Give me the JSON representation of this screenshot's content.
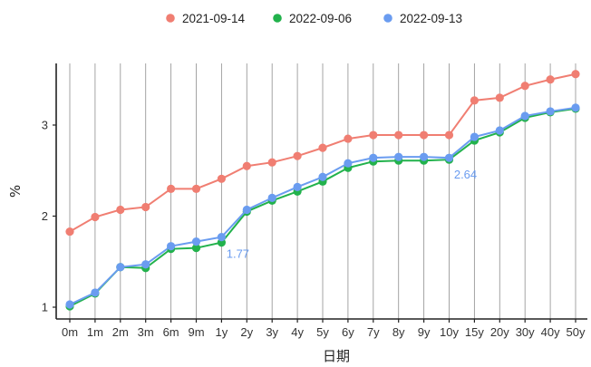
{
  "chart_data": {
    "type": "line",
    "xlabel": "日期",
    "ylabel": "%",
    "categories": [
      "0m",
      "1m",
      "2m",
      "3m",
      "6m",
      "9m",
      "1y",
      "2y",
      "3y",
      "4y",
      "5y",
      "6y",
      "7y",
      "8y",
      "9y",
      "10y",
      "15y",
      "20y",
      "30y",
      "40y",
      "50y"
    ],
    "yticks": [
      1,
      2,
      3
    ],
    "ylim": [
      0.9,
      3.65
    ],
    "grid": "vertical",
    "legend_position": "top",
    "series": [
      {
        "name": "2021-09-14",
        "color": "#F07E72",
        "values": [
          1.83,
          1.99,
          2.07,
          2.1,
          2.3,
          2.3,
          2.41,
          2.55,
          2.59,
          2.66,
          2.75,
          2.85,
          2.89,
          2.89,
          2.89,
          2.89,
          3.27,
          3.3,
          3.43,
          3.5,
          3.56
        ]
      },
      {
        "name": "2022-09-06",
        "color": "#22B24C",
        "values": [
          1.01,
          1.15,
          1.44,
          1.43,
          1.64,
          1.65,
          1.71,
          2.05,
          2.17,
          2.27,
          2.38,
          2.53,
          2.6,
          2.61,
          2.61,
          2.62,
          2.83,
          2.92,
          3.08,
          3.14,
          3.18
        ]
      },
      {
        "name": "2022-09-13",
        "color": "#6A9CF0",
        "values": [
          1.03,
          1.16,
          1.44,
          1.47,
          1.67,
          1.72,
          1.77,
          2.07,
          2.2,
          2.32,
          2.43,
          2.58,
          2.64,
          2.65,
          2.65,
          2.64,
          2.87,
          2.94,
          3.1,
          3.15,
          3.19
        ]
      }
    ],
    "annotations": [
      {
        "label": "1.77",
        "series": "2022-09-13",
        "category": "1y"
      },
      {
        "label": "2.64",
        "series": "2022-09-13",
        "category": "10y"
      }
    ]
  }
}
